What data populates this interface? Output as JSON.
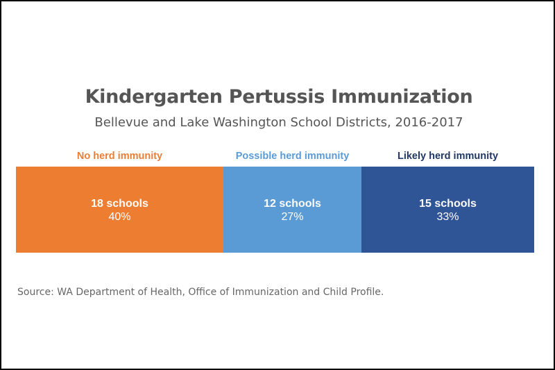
{
  "chart_data": {
    "type": "bar",
    "orientation": "horizontal-stacked-100",
    "title": "Kindergarten Pertussis Immunization",
    "subtitle": "Bellevue and Lake Washington School Districts, 2016-2017",
    "categories": [
      "No herd immunity",
      "Possible herd immunity",
      "Likely herd immunity"
    ],
    "values": [
      18,
      12,
      15
    ],
    "count_labels": [
      "18 schools",
      "12 schools",
      "15 schools"
    ],
    "percent_labels": [
      "40%",
      "27%",
      "33%"
    ],
    "colors": [
      "#ED7D31",
      "#5B9BD5",
      "#2F5597"
    ],
    "label_colors": [
      "#E97E36",
      "#5B9BD5",
      "#203864"
    ],
    "source": "Source: WA Department of Health, Office of Immunization and Child Profile."
  }
}
